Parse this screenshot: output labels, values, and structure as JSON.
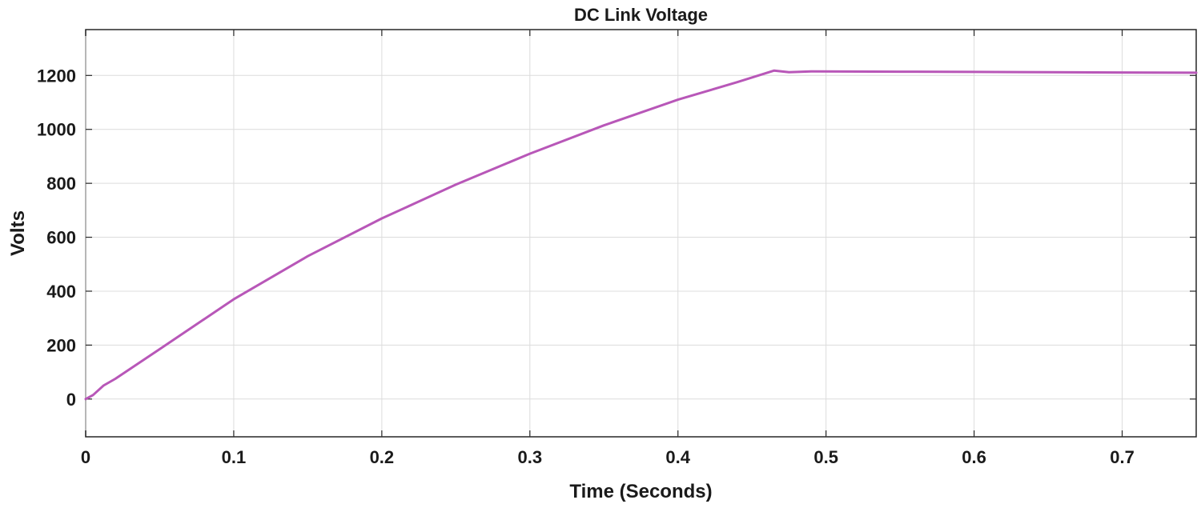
{
  "chart_data": {
    "type": "line",
    "title": "DC Link Voltage",
    "xlabel": "Time (Seconds)",
    "ylabel": "Volts",
    "xlim": [
      0,
      0.75
    ],
    "ylim": [
      -140,
      1370
    ],
    "xticks": [
      0,
      0.1,
      0.2,
      0.3,
      0.4,
      0.5,
      0.6,
      0.7
    ],
    "xtick_labels": [
      "0",
      "0.1",
      "0.2",
      "0.3",
      "0.4",
      "0.5",
      "0.6",
      "0.7"
    ],
    "yticks": [
      0,
      200,
      400,
      600,
      800,
      1000,
      1200
    ],
    "ytick_labels": [
      "0",
      "200",
      "400",
      "600",
      "800",
      "1000",
      "1200"
    ],
    "grid": true,
    "series": [
      {
        "color": "#b857b8",
        "x": [
          0,
          0.005,
          0.012,
          0.02,
          0.05,
          0.1,
          0.15,
          0.2,
          0.25,
          0.3,
          0.35,
          0.4,
          0.44,
          0.465,
          0.475,
          0.49,
          0.55,
          0.6,
          0.65,
          0.7,
          0.75
        ],
        "y": [
          0,
          15,
          50,
          75,
          185,
          370,
          530,
          670,
          795,
          910,
          1015,
          1110,
          1175,
          1218,
          1212,
          1215,
          1214,
          1213,
          1212,
          1211,
          1210
        ]
      }
    ]
  }
}
